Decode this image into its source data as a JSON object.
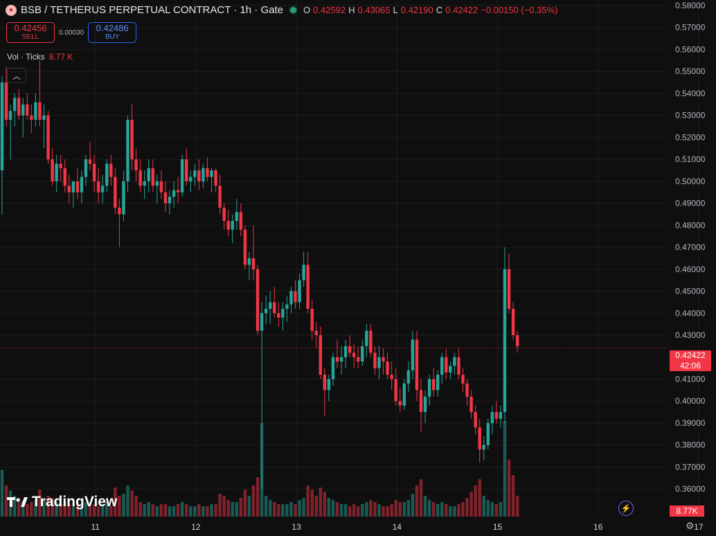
{
  "header": {
    "symbol": "BSB / TETHERUS PERPETUAL CONTRACT · 1h · Gate",
    "open_label": "O",
    "open": "0.42592",
    "high_label": "H",
    "high": "0.43065",
    "low_label": "L",
    "low": "0.42190",
    "close_label": "C",
    "close": "0.42422",
    "change": "−0.00150 (−0.35%)"
  },
  "trade": {
    "sell_price": "0.42456",
    "sell_label": "SELL",
    "spread": "0.00030",
    "buy_price": "0.42486",
    "buy_label": "BUY"
  },
  "volume": {
    "label": "Vol · Ticks",
    "value": "8.77 K",
    "tag": "8.77K"
  },
  "brand": "TradingView",
  "last_price": {
    "value": "0.42422",
    "countdown": "42:06"
  },
  "colors": {
    "up": "#26a69a",
    "down": "#f23645",
    "bg": "#0f0f0f",
    "grid": "#1e1e1e"
  },
  "icons": [
    "logo-icon",
    "collapse-chevron-icon",
    "tradingview-logo-icon",
    "lightning-icon",
    "gear-icon"
  ],
  "chart_data": {
    "type": "candlestick",
    "timeframe": "1h",
    "ylim": [
      0.355,
      0.58
    ],
    "y_ticks": [
      "0.58000",
      "0.57000",
      "0.56000",
      "0.55000",
      "0.54000",
      "0.53000",
      "0.52000",
      "0.51000",
      "0.50000",
      "0.49000",
      "0.48000",
      "0.47000",
      "0.46000",
      "0.45000",
      "0.44000",
      "0.43000",
      "0.41000",
      "0.40000",
      "0.39000",
      "0.38000",
      "0.37000",
      "0.36000"
    ],
    "x_ticks": [
      {
        "label": "11",
        "bar": 14
      },
      {
        "label": "12",
        "bar": 38
      },
      {
        "label": "13",
        "bar": 62
      },
      {
        "label": "14",
        "bar": 86
      },
      {
        "label": "15",
        "bar": 110
      },
      {
        "label": "16",
        "bar": 134
      },
      {
        "label": "17",
        "bar": 158
      }
    ],
    "candles": [
      [
        0.505,
        0.548,
        0.485,
        0.545,
        0.45
      ],
      [
        0.545,
        0.552,
        0.525,
        0.528,
        0.3
      ],
      [
        0.528,
        0.535,
        0.51,
        0.532,
        0.25
      ],
      [
        0.532,
        0.54,
        0.525,
        0.538,
        0.2
      ],
      [
        0.538,
        0.542,
        0.528,
        0.53,
        0.18
      ],
      [
        0.53,
        0.538,
        0.52,
        0.535,
        0.15
      ],
      [
        0.535,
        0.54,
        0.528,
        0.53,
        0.12
      ],
      [
        0.53,
        0.535,
        0.522,
        0.528,
        0.14
      ],
      [
        0.528,
        0.54,
        0.525,
        0.536,
        0.16
      ],
      [
        0.536,
        0.555,
        0.525,
        0.528,
        0.26
      ],
      [
        0.528,
        0.535,
        0.515,
        0.53,
        0.16
      ],
      [
        0.53,
        0.532,
        0.508,
        0.51,
        0.2
      ],
      [
        0.51,
        0.515,
        0.498,
        0.5,
        0.18
      ],
      [
        0.5,
        0.512,
        0.495,
        0.508,
        0.14
      ],
      [
        0.508,
        0.512,
        0.5,
        0.506,
        0.12
      ],
      [
        0.506,
        0.51,
        0.495,
        0.498,
        0.14
      ],
      [
        0.498,
        0.503,
        0.49,
        0.495,
        0.12
      ],
      [
        0.495,
        0.5,
        0.488,
        0.5,
        0.1
      ],
      [
        0.5,
        0.506,
        0.492,
        0.495,
        0.12
      ],
      [
        0.495,
        0.505,
        0.49,
        0.502,
        0.1
      ],
      [
        0.502,
        0.512,
        0.498,
        0.51,
        0.14
      ],
      [
        0.51,
        0.518,
        0.505,
        0.508,
        0.12
      ],
      [
        0.508,
        0.512,
        0.495,
        0.5,
        0.12
      ],
      [
        0.5,
        0.506,
        0.49,
        0.495,
        0.1
      ],
      [
        0.495,
        0.503,
        0.49,
        0.498,
        0.12
      ],
      [
        0.498,
        0.51,
        0.495,
        0.508,
        0.14
      ],
      [
        0.508,
        0.512,
        0.498,
        0.502,
        0.1
      ],
      [
        0.502,
        0.506,
        0.485,
        0.488,
        0.28
      ],
      [
        0.488,
        0.492,
        0.47,
        0.485,
        0.2
      ],
      [
        0.485,
        0.505,
        0.482,
        0.5,
        0.22
      ],
      [
        0.5,
        0.53,
        0.495,
        0.528,
        0.3
      ],
      [
        0.528,
        0.535,
        0.505,
        0.51,
        0.25
      ],
      [
        0.51,
        0.515,
        0.5,
        0.505,
        0.2
      ],
      [
        0.505,
        0.51,
        0.495,
        0.498,
        0.14
      ],
      [
        0.498,
        0.505,
        0.492,
        0.5,
        0.12
      ],
      [
        0.5,
        0.51,
        0.495,
        0.506,
        0.14
      ],
      [
        0.506,
        0.51,
        0.495,
        0.498,
        0.12
      ],
      [
        0.498,
        0.503,
        0.49,
        0.5,
        0.1
      ],
      [
        0.5,
        0.505,
        0.492,
        0.495,
        0.12
      ],
      [
        0.495,
        0.5,
        0.486,
        0.49,
        0.12
      ],
      [
        0.49,
        0.496,
        0.485,
        0.493,
        0.1
      ],
      [
        0.493,
        0.5,
        0.488,
        0.496,
        0.1
      ],
      [
        0.496,
        0.502,
        0.49,
        0.495,
        0.12
      ],
      [
        0.495,
        0.512,
        0.493,
        0.51,
        0.14
      ],
      [
        0.51,
        0.515,
        0.498,
        0.5,
        0.12
      ],
      [
        0.5,
        0.505,
        0.495,
        0.502,
        0.1
      ],
      [
        0.502,
        0.508,
        0.498,
        0.505,
        0.1
      ],
      [
        0.505,
        0.51,
        0.496,
        0.5,
        0.12
      ],
      [
        0.5,
        0.508,
        0.497,
        0.506,
        0.1
      ],
      [
        0.506,
        0.511,
        0.5,
        0.502,
        0.1
      ],
      [
        0.502,
        0.506,
        0.495,
        0.505,
        0.12
      ],
      [
        0.505,
        0.506,
        0.495,
        0.498,
        0.12
      ],
      [
        0.498,
        0.503,
        0.485,
        0.488,
        0.22
      ],
      [
        0.488,
        0.49,
        0.478,
        0.482,
        0.2
      ],
      [
        0.482,
        0.487,
        0.475,
        0.478,
        0.16
      ],
      [
        0.478,
        0.485,
        0.472,
        0.482,
        0.14
      ],
      [
        0.482,
        0.492,
        0.478,
        0.486,
        0.14
      ],
      [
        0.486,
        0.49,
        0.475,
        0.478,
        0.18
      ],
      [
        0.478,
        0.48,
        0.46,
        0.462,
        0.26
      ],
      [
        0.462,
        0.468,
        0.455,
        0.465,
        0.2
      ],
      [
        0.465,
        0.48,
        0.455,
        0.46,
        0.3
      ],
      [
        0.46,
        0.462,
        0.43,
        0.432,
        0.38
      ],
      [
        0.432,
        0.445,
        0.36,
        0.44,
        0.9
      ],
      [
        0.44,
        0.448,
        0.435,
        0.442,
        0.2
      ],
      [
        0.442,
        0.45,
        0.435,
        0.445,
        0.16
      ],
      [
        0.445,
        0.452,
        0.438,
        0.44,
        0.14
      ],
      [
        0.44,
        0.445,
        0.434,
        0.438,
        0.12
      ],
      [
        0.438,
        0.445,
        0.432,
        0.442,
        0.12
      ],
      [
        0.442,
        0.448,
        0.436,
        0.444,
        0.12
      ],
      [
        0.444,
        0.452,
        0.44,
        0.45,
        0.14
      ],
      [
        0.45,
        0.455,
        0.442,
        0.445,
        0.12
      ],
      [
        0.445,
        0.458,
        0.442,
        0.455,
        0.16
      ],
      [
        0.455,
        0.468,
        0.452,
        0.462,
        0.18
      ],
      [
        0.462,
        0.468,
        0.44,
        0.442,
        0.3
      ],
      [
        0.442,
        0.446,
        0.428,
        0.432,
        0.26
      ],
      [
        0.432,
        0.436,
        0.424,
        0.43,
        0.2
      ],
      [
        0.43,
        0.434,
        0.41,
        0.412,
        0.28
      ],
      [
        0.412,
        0.415,
        0.393,
        0.405,
        0.24
      ],
      [
        0.405,
        0.412,
        0.4,
        0.41,
        0.18
      ],
      [
        0.41,
        0.422,
        0.407,
        0.42,
        0.16
      ],
      [
        0.42,
        0.428,
        0.415,
        0.418,
        0.14
      ],
      [
        0.418,
        0.425,
        0.412,
        0.42,
        0.12
      ],
      [
        0.42,
        0.428,
        0.415,
        0.425,
        0.12
      ],
      [
        0.425,
        0.43,
        0.42,
        0.422,
        0.1
      ],
      [
        0.422,
        0.426,
        0.415,
        0.42,
        0.12
      ],
      [
        0.42,
        0.425,
        0.415,
        0.418,
        0.1
      ],
      [
        0.418,
        0.428,
        0.416,
        0.425,
        0.12
      ],
      [
        0.425,
        0.435,
        0.42,
        0.432,
        0.14
      ],
      [
        0.432,
        0.435,
        0.42,
        0.422,
        0.16
      ],
      [
        0.422,
        0.425,
        0.412,
        0.415,
        0.14
      ],
      [
        0.415,
        0.425,
        0.41,
        0.42,
        0.12
      ],
      [
        0.42,
        0.424,
        0.412,
        0.418,
        0.1
      ],
      [
        0.418,
        0.422,
        0.41,
        0.412,
        0.1
      ],
      [
        0.412,
        0.418,
        0.405,
        0.41,
        0.12
      ],
      [
        0.41,
        0.415,
        0.398,
        0.4,
        0.16
      ],
      [
        0.4,
        0.406,
        0.395,
        0.398,
        0.14
      ],
      [
        0.398,
        0.41,
        0.396,
        0.408,
        0.14
      ],
      [
        0.408,
        0.418,
        0.404,
        0.414,
        0.16
      ],
      [
        0.414,
        0.432,
        0.41,
        0.428,
        0.22
      ],
      [
        0.428,
        0.432,
        0.4,
        0.405,
        0.3
      ],
      [
        0.405,
        0.41,
        0.386,
        0.395,
        0.36
      ],
      [
        0.395,
        0.405,
        0.39,
        0.402,
        0.2
      ],
      [
        0.402,
        0.412,
        0.398,
        0.41,
        0.16
      ],
      [
        0.41,
        0.415,
        0.402,
        0.405,
        0.14
      ],
      [
        0.405,
        0.414,
        0.402,
        0.412,
        0.12
      ],
      [
        0.412,
        0.422,
        0.408,
        0.42,
        0.14
      ],
      [
        0.42,
        0.424,
        0.41,
        0.413,
        0.12
      ],
      [
        0.413,
        0.418,
        0.41,
        0.416,
        0.1
      ],
      [
        0.416,
        0.422,
        0.412,
        0.42,
        0.1
      ],
      [
        0.42,
        0.424,
        0.41,
        0.412,
        0.12
      ],
      [
        0.412,
        0.415,
        0.404,
        0.408,
        0.14
      ],
      [
        0.408,
        0.41,
        0.398,
        0.402,
        0.18
      ],
      [
        0.402,
        0.405,
        0.392,
        0.395,
        0.24
      ],
      [
        0.395,
        0.398,
        0.385,
        0.388,
        0.3
      ],
      [
        0.388,
        0.392,
        0.372,
        0.378,
        0.36
      ],
      [
        0.378,
        0.384,
        0.373,
        0.38,
        0.2
      ],
      [
        0.38,
        0.392,
        0.378,
        0.39,
        0.16
      ],
      [
        0.39,
        0.398,
        0.385,
        0.395,
        0.14
      ],
      [
        0.395,
        0.4,
        0.39,
        0.392,
        0.12
      ],
      [
        0.392,
        0.398,
        0.388,
        0.395,
        0.14
      ],
      [
        0.395,
        0.47,
        0.39,
        0.46,
        0.92
      ],
      [
        0.46,
        0.467,
        0.44,
        0.442,
        0.55
      ],
      [
        0.442,
        0.445,
        0.428,
        0.43,
        0.4
      ],
      [
        0.43,
        0.432,
        0.422,
        0.425,
        0.2
      ]
    ]
  }
}
